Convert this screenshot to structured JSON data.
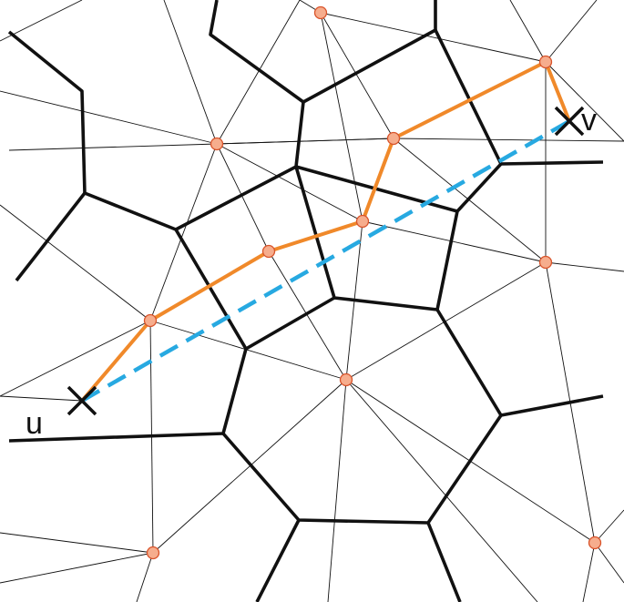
{
  "labels": {
    "start": "u",
    "end": "v"
  },
  "colors": {
    "background": "#ffffff",
    "voronoi_edge": "#111111",
    "delaunay_edge": "#111111",
    "site_fill": "#f6ad8d",
    "site_stroke": "#d9532a",
    "path": "#f0892a",
    "straight_line": "#27a9e1",
    "endpoint_mark": "#111111"
  },
  "legend": []
}
